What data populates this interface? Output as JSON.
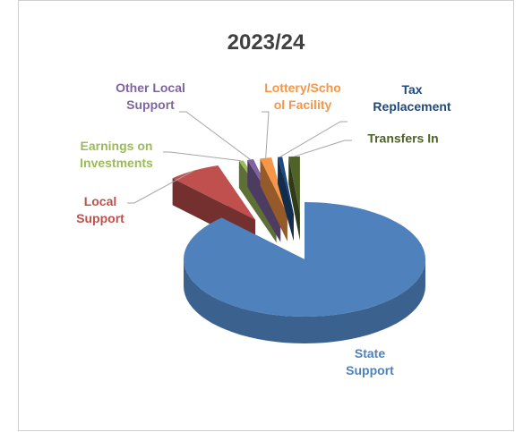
{
  "chart_data": {
    "type": "pie",
    "title": "2023/24",
    "categories": [
      "State Support",
      "Local Support",
      "Earnings on Investments",
      "Other Local Support",
      "Lottery/School Facility",
      "Tax Replacement",
      "Transfers In"
    ],
    "values": [
      88,
      7,
      0.6,
      0.8,
      1.5,
      0.6,
      1.5
    ],
    "colors": [
      "#4f81bd",
      "#c0504d",
      "#9bbb59",
      "#8064a2",
      "#f79646",
      "#1f497d",
      "#4f6228"
    ]
  }
}
